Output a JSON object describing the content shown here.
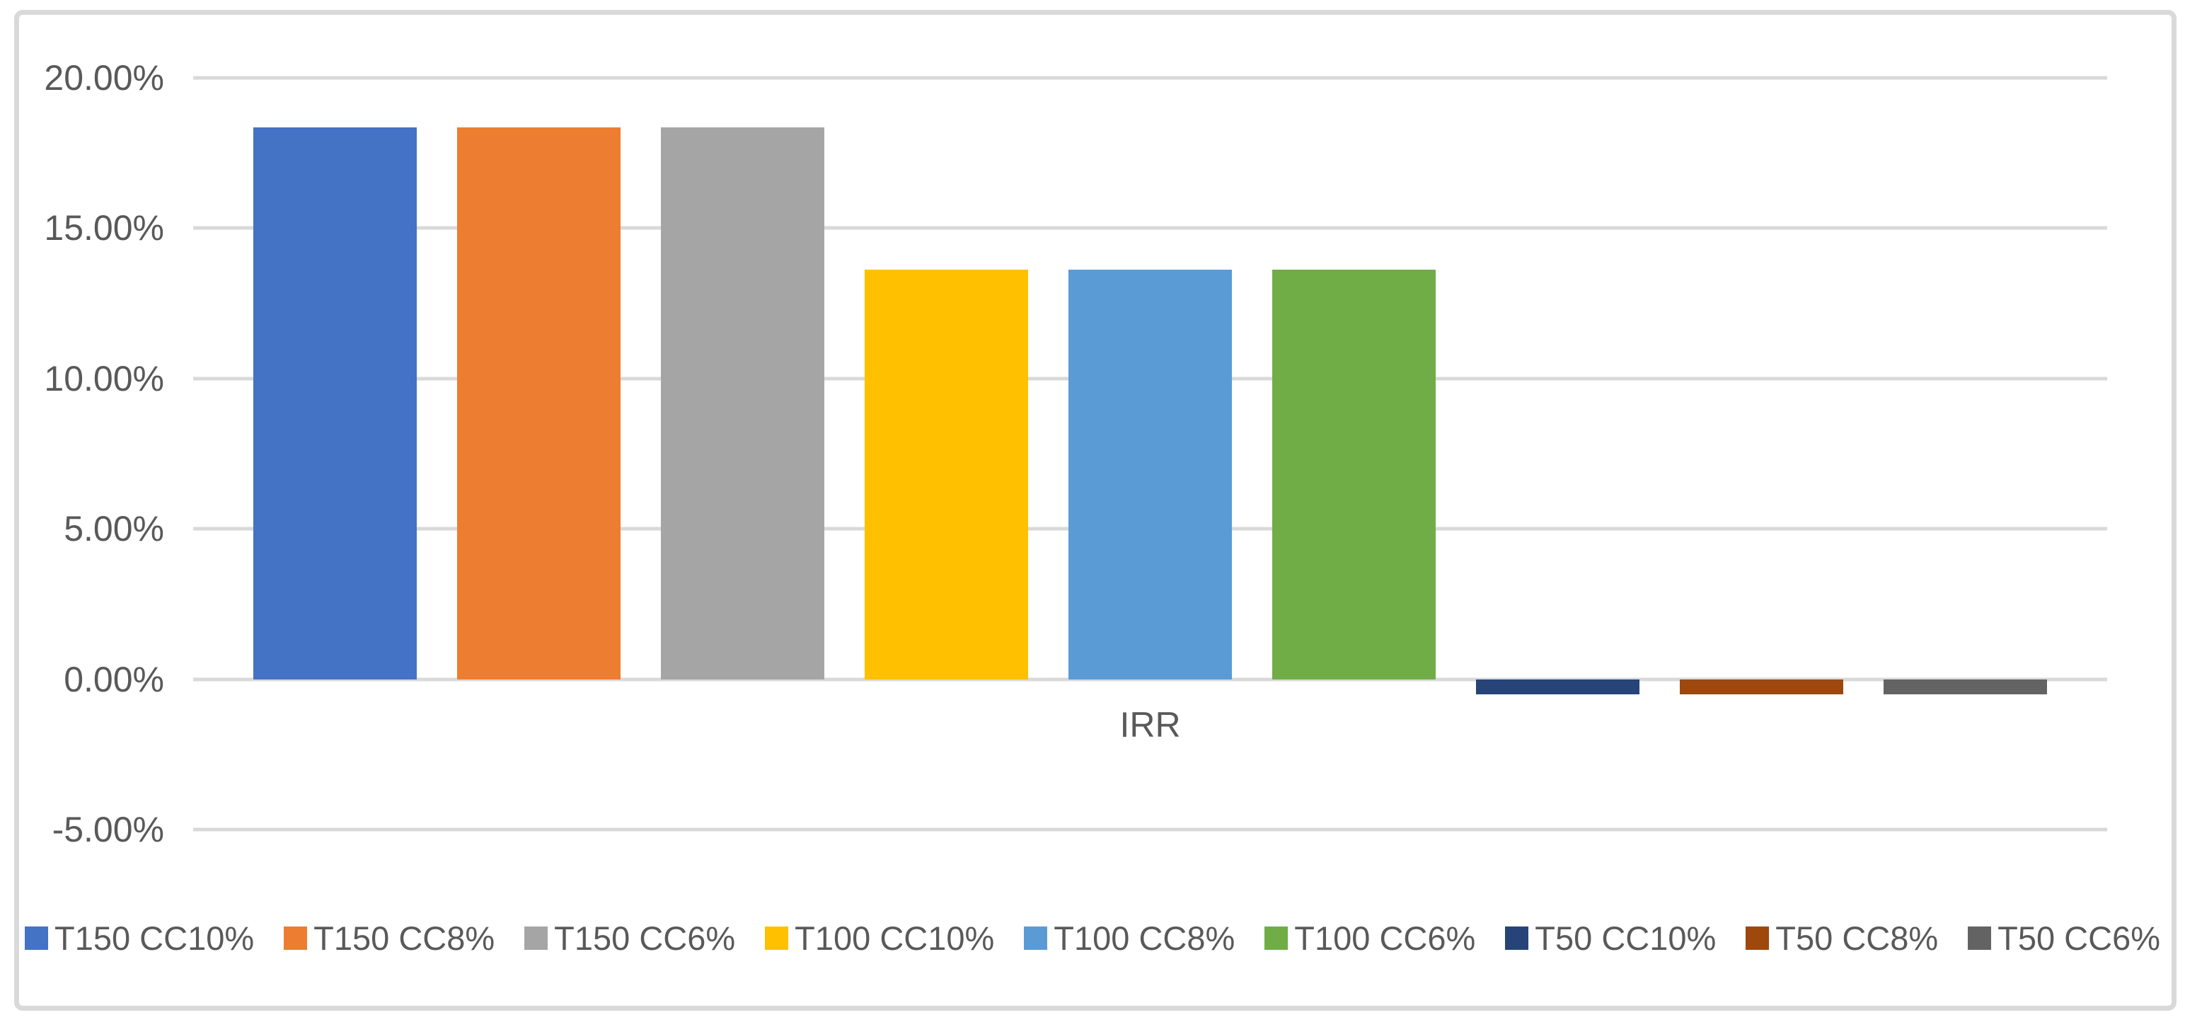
{
  "chart_data": {
    "type": "bar",
    "title": "",
    "xlabel": "IRR",
    "ylabel": "",
    "value_unit": "percent",
    "categories": [
      "IRR"
    ],
    "series": [
      {
        "name": "T150 CC10%",
        "color": "#4472C4",
        "values": [
          18.36
        ]
      },
      {
        "name": "T150 CC8%",
        "color": "#ED7D31",
        "values": [
          18.36
        ]
      },
      {
        "name": "T150 CC6%",
        "color": "#A5A5A5",
        "values": [
          18.36
        ]
      },
      {
        "name": "T100 CC10%",
        "color": "#FFC000",
        "values": [
          13.63
        ]
      },
      {
        "name": "T100 CC8%",
        "color": "#5B9BD5",
        "values": [
          13.63
        ]
      },
      {
        "name": "T100 CC6%",
        "color": "#70AD47",
        "values": [
          13.63
        ]
      },
      {
        "name": "T50 CC10%",
        "color": "#264478",
        "values": [
          -0.5
        ]
      },
      {
        "name": "T50 CC8%",
        "color": "#9E480E",
        "values": [
          -0.5
        ]
      },
      {
        "name": "T50 CC6%",
        "color": "#636363",
        "values": [
          -0.5
        ]
      }
    ],
    "ylim": [
      -5,
      20
    ],
    "yticks": [
      {
        "value": 20,
        "label": "20.00%"
      },
      {
        "value": 15,
        "label": "15.00%"
      },
      {
        "value": 10,
        "label": "10.00%"
      },
      {
        "value": 5,
        "label": "5.00%"
      },
      {
        "value": 0,
        "label": "0.00%"
      },
      {
        "value": -5,
        "label": "-5.00%"
      }
    ],
    "grid": true,
    "legend_position": "bottom",
    "gridline_color": "#D9D9D9",
    "frame_color": "#D9D9D9",
    "text_color": "#595959"
  }
}
